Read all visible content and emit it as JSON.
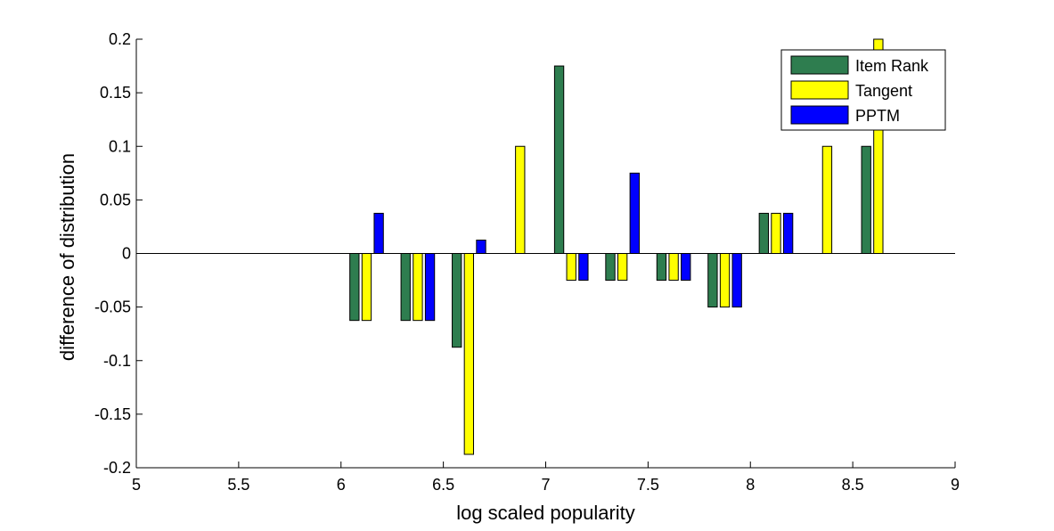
{
  "chart_data": {
    "type": "bar",
    "title": "",
    "xlabel": "log scaled popularity",
    "ylabel": "difference of distribution",
    "xlim": [
      5,
      9
    ],
    "ylim": [
      -0.2,
      0.2
    ],
    "grid": false,
    "legend_position": "top-right",
    "x_ticks": [
      5,
      5.5,
      6,
      6.5,
      7,
      7.5,
      8,
      8.5,
      9
    ],
    "x_tick_labels": [
      "5",
      "5.5",
      "6",
      "6.5",
      "7",
      "7.5",
      "8",
      "8.5",
      "9"
    ],
    "y_ticks": [
      -0.2,
      -0.15,
      -0.1,
      -0.05,
      0,
      0.05,
      0.1,
      0.15,
      0.2
    ],
    "y_tick_labels": [
      "-0.2",
      "-0.15",
      "-0.1",
      "-0.05",
      "0",
      "0.05",
      "0.1",
      "0.15",
      "0.2"
    ],
    "x": [
      6.125,
      6.375,
      6.625,
      6.875,
      7.125,
      7.375,
      7.625,
      7.875,
      8.125,
      8.375,
      8.625
    ],
    "series": [
      {
        "name": "Item Rank",
        "color": "#2e7d4f",
        "values": [
          -0.0625,
          -0.0625,
          -0.0875,
          0,
          0.175,
          -0.025,
          -0.025,
          -0.05,
          0.0375,
          0,
          0.1
        ]
      },
      {
        "name": "Tangent",
        "color": "#ffff00",
        "values": [
          -0.0625,
          -0.0625,
          -0.1875,
          0.1,
          -0.025,
          -0.025,
          -0.025,
          -0.05,
          0.0375,
          0.1,
          0.2
        ]
      },
      {
        "name": "PPTM",
        "color": "#0000ff",
        "values": [
          0.0375,
          -0.0625,
          0.0125,
          0,
          -0.025,
          0.075,
          -0.025,
          -0.05,
          0.0375,
          0,
          0
        ]
      }
    ]
  }
}
